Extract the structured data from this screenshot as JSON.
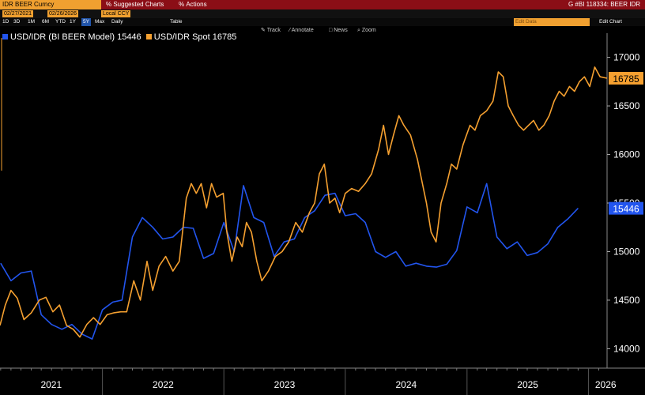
{
  "header": {
    "ticker": "IDR BEER Curncy",
    "suggested_charts": "Suggested Charts",
    "actions": "Actions",
    "right_title": "G #BI 118334: BEER IDR",
    "start_date": "02/27/2021",
    "end_date": "02/26/2026",
    "currency": "Local CCY",
    "edit_data": "Edit Data",
    "edit_chart": "Edit Chart"
  },
  "periods": [
    "1D",
    "3D",
    "1M",
    "6M",
    "YTD",
    "1Y",
    "5Y",
    "Max"
  ],
  "frequency": "Daily",
  "table_label": "Table",
  "tools": {
    "track": "Track",
    "annotate": "Annotate",
    "news": "News",
    "zoom": "Zoom"
  },
  "colors": {
    "model": "#2255ee",
    "spot": "#f5a030",
    "menu_bar": "#8b0e16",
    "accent": "#f0a030"
  },
  "legend": {
    "model": "USD/IDR (BI BEER Model) 15446",
    "spot": "USD/IDR Spot 16785"
  },
  "chart_data": {
    "type": "line",
    "title": "",
    "xlabel": "",
    "ylabel": "",
    "xlim": [
      "2021-02-27",
      "2026-02-26"
    ],
    "ylim": [
      13800,
      17200
    ],
    "y_ticks": [
      14000,
      14500,
      15000,
      15500,
      16000,
      16500,
      17000
    ],
    "x_tick_labels": [
      "2021",
      "2022",
      "2023",
      "2024",
      "2025",
      "2026"
    ],
    "grid": false,
    "legend_position": "top-left",
    "last_value_labels": {
      "model": "15446",
      "spot": "16785"
    },
    "series": [
      {
        "name": "USD/IDR (BI BEER Model) 15446",
        "color": "#2255ee",
        "points": [
          [
            "2021-03-01",
            14880
          ],
          [
            "2021-04-01",
            14700
          ],
          [
            "2021-05-01",
            14780
          ],
          [
            "2021-06-01",
            14800
          ],
          [
            "2021-07-01",
            14350
          ],
          [
            "2021-08-01",
            14250
          ],
          [
            "2021-09-01",
            14200
          ],
          [
            "2021-10-01",
            14250
          ],
          [
            "2021-11-01",
            14150
          ],
          [
            "2021-12-01",
            14100
          ],
          [
            "2022-01-01",
            14400
          ],
          [
            "2022-02-01",
            14480
          ],
          [
            "2022-03-01",
            14500
          ],
          [
            "2022-04-01",
            15150
          ],
          [
            "2022-05-01",
            15350
          ],
          [
            "2022-06-01",
            15250
          ],
          [
            "2022-07-01",
            15130
          ],
          [
            "2022-08-01",
            15150
          ],
          [
            "2022-09-01",
            15250
          ],
          [
            "2022-10-01",
            15240
          ],
          [
            "2022-11-01",
            14930
          ],
          [
            "2022-12-01",
            14980
          ],
          [
            "2023-01-01",
            15300
          ],
          [
            "2023-02-01",
            15000
          ],
          [
            "2023-03-01",
            15680
          ],
          [
            "2023-04-01",
            15350
          ],
          [
            "2023-05-01",
            15300
          ],
          [
            "2023-06-01",
            14950
          ],
          [
            "2023-07-01",
            15100
          ],
          [
            "2023-08-01",
            15130
          ],
          [
            "2023-09-01",
            15350
          ],
          [
            "2023-10-01",
            15420
          ],
          [
            "2023-11-01",
            15580
          ],
          [
            "2023-12-01",
            15600
          ],
          [
            "2024-01-01",
            15370
          ],
          [
            "2024-02-01",
            15390
          ],
          [
            "2024-03-01",
            15300
          ],
          [
            "2024-04-01",
            15000
          ],
          [
            "2024-05-01",
            14940
          ],
          [
            "2024-06-01",
            15000
          ],
          [
            "2024-07-01",
            14850
          ],
          [
            "2024-08-01",
            14880
          ],
          [
            "2024-09-01",
            14850
          ],
          [
            "2024-10-01",
            14840
          ],
          [
            "2024-11-01",
            14870
          ],
          [
            "2024-12-01",
            15010
          ],
          [
            "2025-01-01",
            15460
          ],
          [
            "2025-02-01",
            15400
          ],
          [
            "2025-03-01",
            15700
          ],
          [
            "2025-04-01",
            15150
          ],
          [
            "2025-05-01",
            15030
          ],
          [
            "2025-06-01",
            15100
          ],
          [
            "2025-07-01",
            14960
          ],
          [
            "2025-08-01",
            14990
          ],
          [
            "2025-09-01",
            15080
          ],
          [
            "2025-10-01",
            15250
          ],
          [
            "2025-11-01",
            15340
          ],
          [
            "2025-12-01",
            15446
          ]
        ]
      },
      {
        "name": "USD/IDR Spot 16785",
        "color": "#f5a030",
        "points": [
          [
            "2021-02-27",
            14240
          ],
          [
            "2021-03-15",
            14450
          ],
          [
            "2021-04-01",
            14600
          ],
          [
            "2021-04-20",
            14520
          ],
          [
            "2021-05-10",
            14300
          ],
          [
            "2021-06-01",
            14370
          ],
          [
            "2021-06-25",
            14500
          ],
          [
            "2021-07-15",
            14530
          ],
          [
            "2021-08-05",
            14380
          ],
          [
            "2021-08-25",
            14450
          ],
          [
            "2021-09-15",
            14240
          ],
          [
            "2021-10-05",
            14200
          ],
          [
            "2021-10-25",
            14120
          ],
          [
            "2021-11-15",
            14250
          ],
          [
            "2021-12-05",
            14320
          ],
          [
            "2021-12-25",
            14250
          ],
          [
            "2022-01-15",
            14350
          ],
          [
            "2022-02-05",
            14370
          ],
          [
            "2022-02-25",
            14380
          ],
          [
            "2022-03-15",
            14380
          ],
          [
            "2022-04-05",
            14700
          ],
          [
            "2022-04-25",
            14500
          ],
          [
            "2022-05-15",
            14900
          ],
          [
            "2022-06-01",
            14600
          ],
          [
            "2022-06-20",
            14850
          ],
          [
            "2022-07-10",
            14950
          ],
          [
            "2022-08-01",
            14800
          ],
          [
            "2022-08-20",
            14900
          ],
          [
            "2022-09-10",
            15550
          ],
          [
            "2022-09-25",
            15700
          ],
          [
            "2022-10-10",
            15600
          ],
          [
            "2022-10-25",
            15700
          ],
          [
            "2022-11-10",
            15450
          ],
          [
            "2022-11-25",
            15700
          ],
          [
            "2022-12-10",
            15560
          ],
          [
            "2022-12-30",
            15600
          ],
          [
            "2023-01-10",
            15200
          ],
          [
            "2023-01-25",
            14900
          ],
          [
            "2023-02-10",
            15150
          ],
          [
            "2023-02-25",
            15050
          ],
          [
            "2023-03-10",
            15300
          ],
          [
            "2023-03-25",
            15200
          ],
          [
            "2023-04-10",
            14900
          ],
          [
            "2023-04-25",
            14700
          ],
          [
            "2023-05-15",
            14800
          ],
          [
            "2023-06-05",
            14950
          ],
          [
            "2023-06-25",
            15000
          ],
          [
            "2023-07-15",
            15100
          ],
          [
            "2023-08-05",
            15300
          ],
          [
            "2023-08-25",
            15200
          ],
          [
            "2023-09-15",
            15400
          ],
          [
            "2023-10-01",
            15500
          ],
          [
            "2023-10-15",
            15800
          ],
          [
            "2023-10-30",
            15900
          ],
          [
            "2023-11-15",
            15500
          ],
          [
            "2023-12-01",
            15550
          ],
          [
            "2023-12-15",
            15400
          ],
          [
            "2024-01-01",
            15600
          ],
          [
            "2024-01-20",
            15650
          ],
          [
            "2024-02-10",
            15620
          ],
          [
            "2024-03-01",
            15700
          ],
          [
            "2024-03-20",
            15800
          ],
          [
            "2024-04-10",
            16050
          ],
          [
            "2024-04-25",
            16300
          ],
          [
            "2024-05-10",
            16000
          ],
          [
            "2024-05-25",
            16200
          ],
          [
            "2024-06-10",
            16400
          ],
          [
            "2024-06-25",
            16300
          ],
          [
            "2024-07-15",
            16200
          ],
          [
            "2024-08-05",
            15950
          ],
          [
            "2024-08-20",
            15700
          ],
          [
            "2024-09-01",
            15500
          ],
          [
            "2024-09-15",
            15200
          ],
          [
            "2024-09-30",
            15100
          ],
          [
            "2024-10-15",
            15500
          ],
          [
            "2024-11-01",
            15700
          ],
          [
            "2024-11-15",
            15900
          ],
          [
            "2024-12-01",
            15850
          ],
          [
            "2024-12-20",
            16100
          ],
          [
            "2025-01-10",
            16300
          ],
          [
            "2025-01-25",
            16250
          ],
          [
            "2025-02-10",
            16400
          ],
          [
            "2025-03-01",
            16450
          ],
          [
            "2025-03-20",
            16550
          ],
          [
            "2025-04-05",
            16850
          ],
          [
            "2025-04-20",
            16800
          ],
          [
            "2025-05-05",
            16500
          ],
          [
            "2025-05-20",
            16400
          ],
          [
            "2025-06-05",
            16300
          ],
          [
            "2025-06-20",
            16250
          ],
          [
            "2025-07-05",
            16300
          ],
          [
            "2025-07-20",
            16350
          ],
          [
            "2025-08-05",
            16250
          ],
          [
            "2025-08-20",
            16300
          ],
          [
            "2025-09-05",
            16400
          ],
          [
            "2025-09-20",
            16550
          ],
          [
            "2025-10-05",
            16650
          ],
          [
            "2025-10-20",
            16600
          ],
          [
            "2025-11-05",
            16700
          ],
          [
            "2025-11-20",
            16650
          ],
          [
            "2025-12-05",
            16750
          ],
          [
            "2025-12-20",
            16800
          ],
          [
            "2026-01-05",
            16700
          ],
          [
            "2026-01-20",
            16900
          ],
          [
            "2026-02-05",
            16800
          ],
          [
            "2026-02-26",
            16785
          ]
        ]
      }
    ]
  }
}
